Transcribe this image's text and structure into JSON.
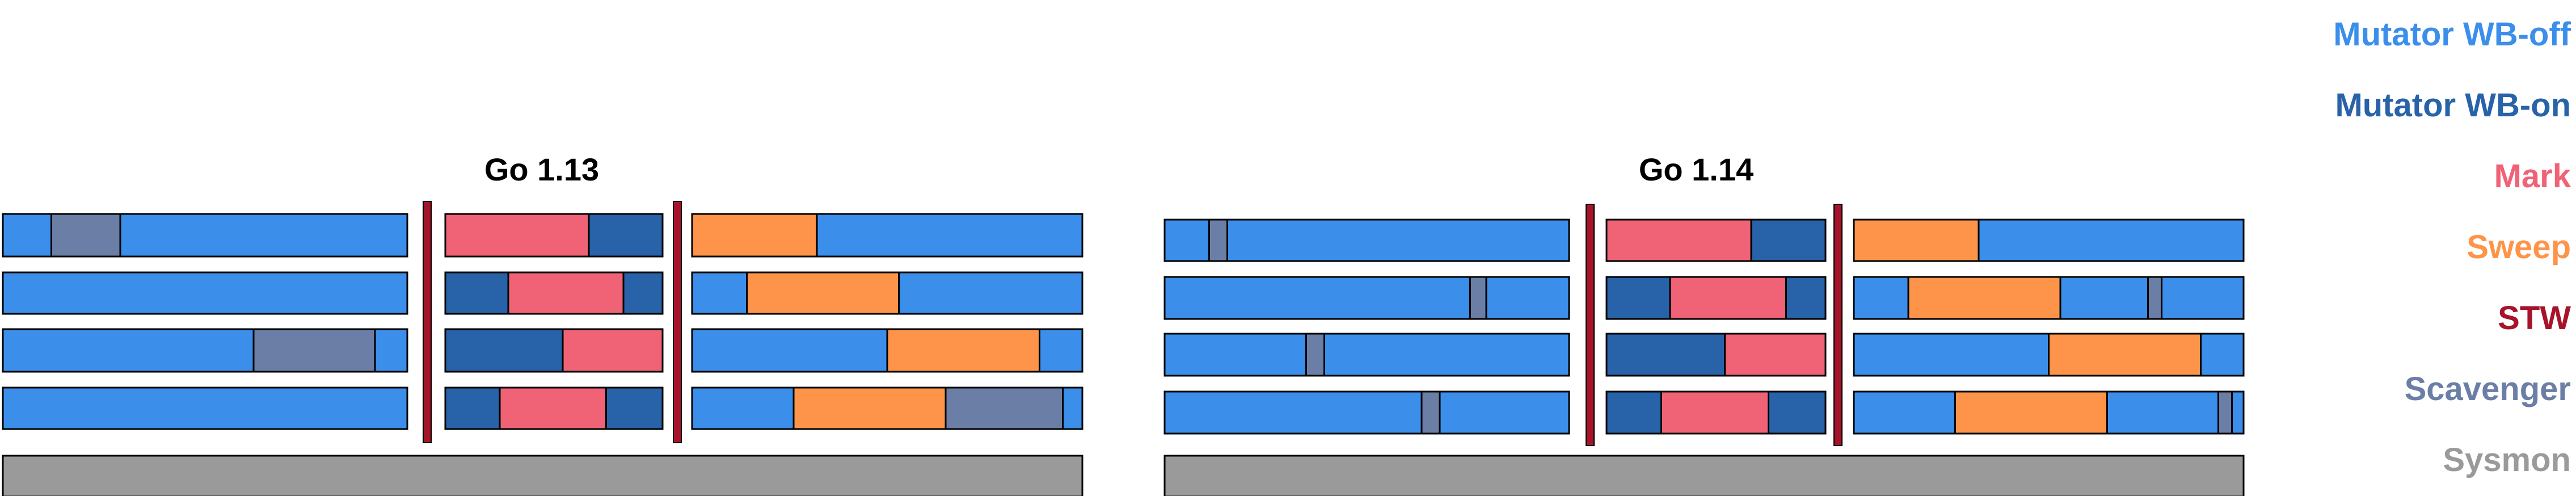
{
  "colors": {
    "wb_off": "#3b8eea",
    "wb_on": "#2862a8",
    "mark": "#f06276",
    "sweep": "#fd9449",
    "stw": "#a7142a",
    "scavenger": "#6b7ea5",
    "sysmon": "#9a9a9a"
  },
  "legend": [
    {
      "label": "Mutator WB-off",
      "color": "wb_off"
    },
    {
      "label": "Mutator WB-on",
      "color": "wb_on"
    },
    {
      "label": "Mark",
      "color": "mark"
    },
    {
      "label": "Sweep",
      "color": "sweep"
    },
    {
      "label": "STW",
      "color": "stw"
    },
    {
      "label": "Scavenger",
      "color": "scavenger"
    },
    {
      "label": "Sysmon",
      "color": "sysmon"
    }
  ],
  "diagrams": [
    {
      "title": "Go 1.13",
      "phases": [
        [
          [
            [
              "wb_off",
              0.12
            ],
            [
              "scavenger",
              0.29
            ],
            [
              "wb_off",
              1.0
            ]
          ],
          [
            [
              "wb_off",
              1.0
            ]
          ],
          [
            [
              "wb_off",
              0.62
            ],
            [
              "scavenger",
              0.92
            ],
            [
              "wb_off",
              1.0
            ]
          ],
          [
            [
              "wb_off",
              1.0
            ]
          ]
        ],
        [
          [
            [
              "mark",
              0.66
            ],
            [
              "wb_on",
              1.0
            ]
          ],
          [
            [
              "wb_on",
              0.29
            ],
            [
              "mark",
              0.82
            ],
            [
              "wb_on",
              1.0
            ]
          ],
          [
            [
              "wb_on",
              0.54
            ],
            [
              "mark",
              1.0
            ]
          ],
          [
            [
              "wb_on",
              0.25
            ],
            [
              "mark",
              0.74
            ],
            [
              "wb_on",
              1.0
            ]
          ]
        ],
        [
          [
            [
              "sweep",
              0.32
            ],
            [
              "wb_off",
              1.0
            ]
          ],
          [
            [
              "wb_off",
              0.14
            ],
            [
              "sweep",
              0.53
            ],
            [
              "wb_off",
              1.0
            ]
          ],
          [
            [
              "wb_off",
              0.5
            ],
            [
              "sweep",
              0.89
            ],
            [
              "wb_off",
              1.0
            ]
          ],
          [
            [
              "wb_off",
              0.26
            ],
            [
              "sweep",
              0.65
            ],
            [
              "scavenger",
              0.95
            ],
            [
              "wb_off",
              1.0
            ]
          ]
        ]
      ]
    },
    {
      "title": "Go 1.14",
      "phases": [
        [
          [
            [
              "wb_off",
              0.11
            ],
            [
              "scavenger",
              0.155
            ],
            [
              "wb_off",
              1.0
            ]
          ],
          [
            [
              "wb_off",
              0.755
            ],
            [
              "scavenger",
              0.795
            ],
            [
              "wb_off",
              1.0
            ]
          ],
          [
            [
              "wb_off",
              0.35
            ],
            [
              "scavenger",
              0.395
            ],
            [
              "wb_off",
              1.0
            ]
          ],
          [
            [
              "wb_off",
              0.635
            ],
            [
              "scavenger",
              0.68
            ],
            [
              "wb_off",
              1.0
            ]
          ]
        ],
        [
          [
            [
              "mark",
              0.66
            ],
            [
              "wb_on",
              1.0
            ]
          ],
          [
            [
              "wb_on",
              0.29
            ],
            [
              "mark",
              0.82
            ],
            [
              "wb_on",
              1.0
            ]
          ],
          [
            [
              "wb_on",
              0.54
            ],
            [
              "mark",
              1.0
            ]
          ],
          [
            [
              "wb_on",
              0.25
            ],
            [
              "mark",
              0.74
            ],
            [
              "wb_on",
              1.0
            ]
          ]
        ],
        [
          [
            [
              "sweep",
              0.32
            ],
            [
              "wb_off",
              1.0
            ]
          ],
          [
            [
              "wb_off",
              0.14
            ],
            [
              "sweep",
              0.53
            ],
            [
              "wb_off",
              0.755
            ],
            [
              "scavenger",
              0.79
            ],
            [
              "wb_off",
              1.0
            ]
          ],
          [
            [
              "wb_off",
              0.5
            ],
            [
              "sweep",
              0.89
            ],
            [
              "wb_off",
              1.0
            ]
          ],
          [
            [
              "wb_off",
              0.26
            ],
            [
              "sweep",
              0.65
            ],
            [
              "wb_off",
              0.935
            ],
            [
              "scavenger",
              0.97
            ],
            [
              "wb_off",
              1.0
            ]
          ]
        ]
      ]
    }
  ]
}
